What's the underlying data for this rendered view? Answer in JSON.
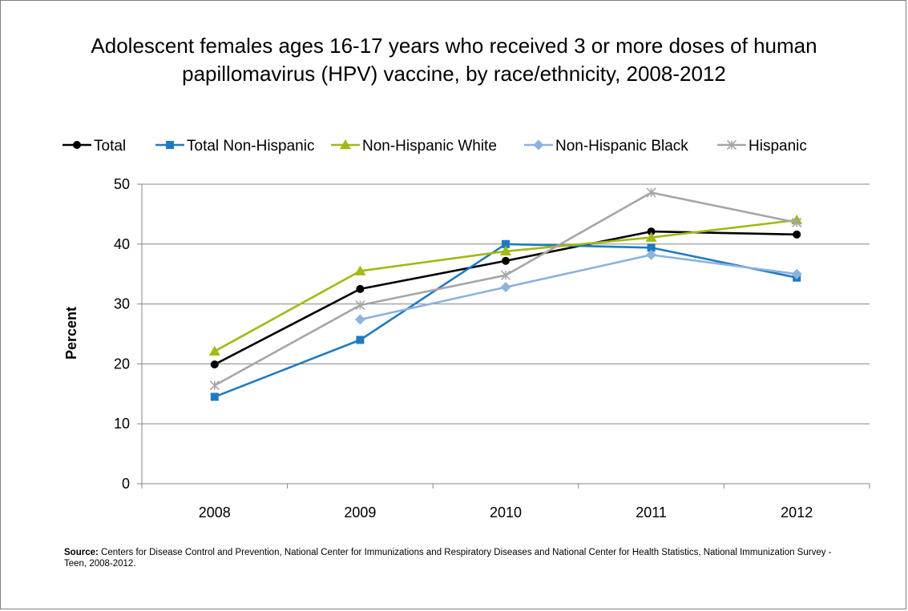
{
  "chart_data": {
    "type": "line",
    "title": "Adolescent females ages 16-17 years who received 3 or more doses of human papillomavirus (HPV) vaccine, by race/ethnicity, 2008-2012",
    "ylabel": "Percent",
    "xlabel": "",
    "categories": [
      "2008",
      "2009",
      "2010",
      "2011",
      "2012"
    ],
    "ylim": [
      0,
      50
    ],
    "yticks": [
      0,
      10,
      20,
      30,
      40,
      50
    ],
    "grid": true,
    "legend_position": "top",
    "series": [
      {
        "name": "Total",
        "color": "#000000",
        "marker": "circle",
        "values": [
          19.9,
          32.5,
          37.2,
          42.1,
          41.6
        ]
      },
      {
        "name": "Total Non-Hispanic",
        "color": "#1f7bc1",
        "marker": "square",
        "values": [
          14.5,
          24.0,
          40.0,
          39.4,
          34.4
        ]
      },
      {
        "name": "Non-Hispanic White",
        "color": "#a5b813",
        "marker": "triangle",
        "values": [
          22.1,
          35.5,
          38.8,
          41.1,
          44.0
        ]
      },
      {
        "name": "Non-Hispanic Black",
        "color": "#8cb2e0",
        "marker": "diamond",
        "values": [
          null,
          27.4,
          32.8,
          38.2,
          35.0
        ]
      },
      {
        "name": "Hispanic",
        "color": "#a6a6a6",
        "marker": "star",
        "values": [
          16.4,
          29.8,
          34.8,
          48.6,
          43.6
        ]
      }
    ]
  },
  "source": {
    "label": "Source:",
    "text": " Centers for Disease Control and Prevention, National Center for Immunizations and Respiratory Diseases and National Center for Health Statistics, National Immunization Survey - Teen, 2008-2012."
  }
}
